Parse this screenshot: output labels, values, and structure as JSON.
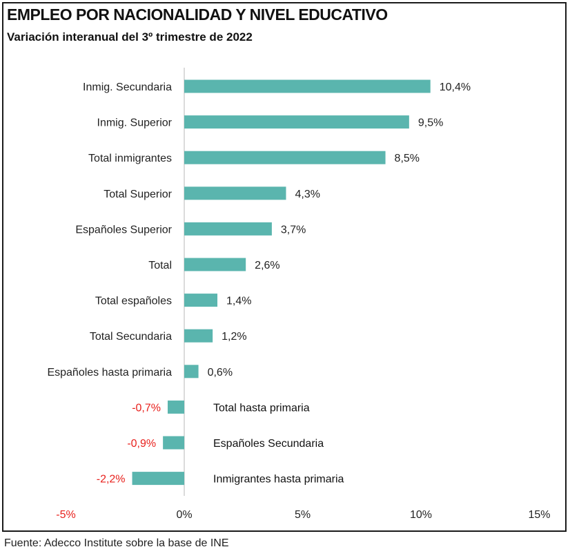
{
  "header": {
    "title": "EMPLEO POR NACIONALIDAD Y NIVEL EDUCATIVO",
    "subtitle": "Variación interanual del 3º trimestre de 2022"
  },
  "footer": {
    "source": "Fuente: Adecco Institute sobre la base de INE"
  },
  "chart_data": {
    "type": "bar",
    "orientation": "horizontal",
    "title": "EMPLEO POR NACIONALIDAD Y NIVEL EDUCATIVO",
    "subtitle": "Variación interanual del 3º trimestre de 2022",
    "categories": [
      "Inmig. Secundaria",
      "Inmig. Superior",
      "Total inmigrantes",
      "Total Superior",
      "Españoles Superior",
      "Total",
      "Total españoles",
      "Total Secundaria",
      "Españoles hasta primaria",
      "Total hasta primaria",
      "Españoles Secundaria",
      "Inmigrantes hasta primaria"
    ],
    "values": [
      10.4,
      9.5,
      8.5,
      4.3,
      3.7,
      2.6,
      1.4,
      1.2,
      0.6,
      -0.7,
      -0.9,
      -2.2
    ],
    "value_labels": [
      "10,4%",
      "9,5%",
      "8,5%",
      "4,3%",
      "3,7%",
      "2,6%",
      "1,4%",
      "1,2%",
      "0,6%",
      "-0,7%",
      "-0,9%",
      "-2,2%"
    ],
    "xlim": [
      -5,
      15
    ],
    "x_ticks": [
      -5,
      0,
      5,
      10,
      15
    ],
    "x_tick_labels": [
      "-5%",
      "0%",
      "5%",
      "10%",
      "15%"
    ],
    "grid": false,
    "legend": "none",
    "colors": {
      "bar": "#5ab5ae",
      "negative_label": "#e8201c",
      "text": "#222222",
      "axis": "#cfcfcf"
    }
  }
}
